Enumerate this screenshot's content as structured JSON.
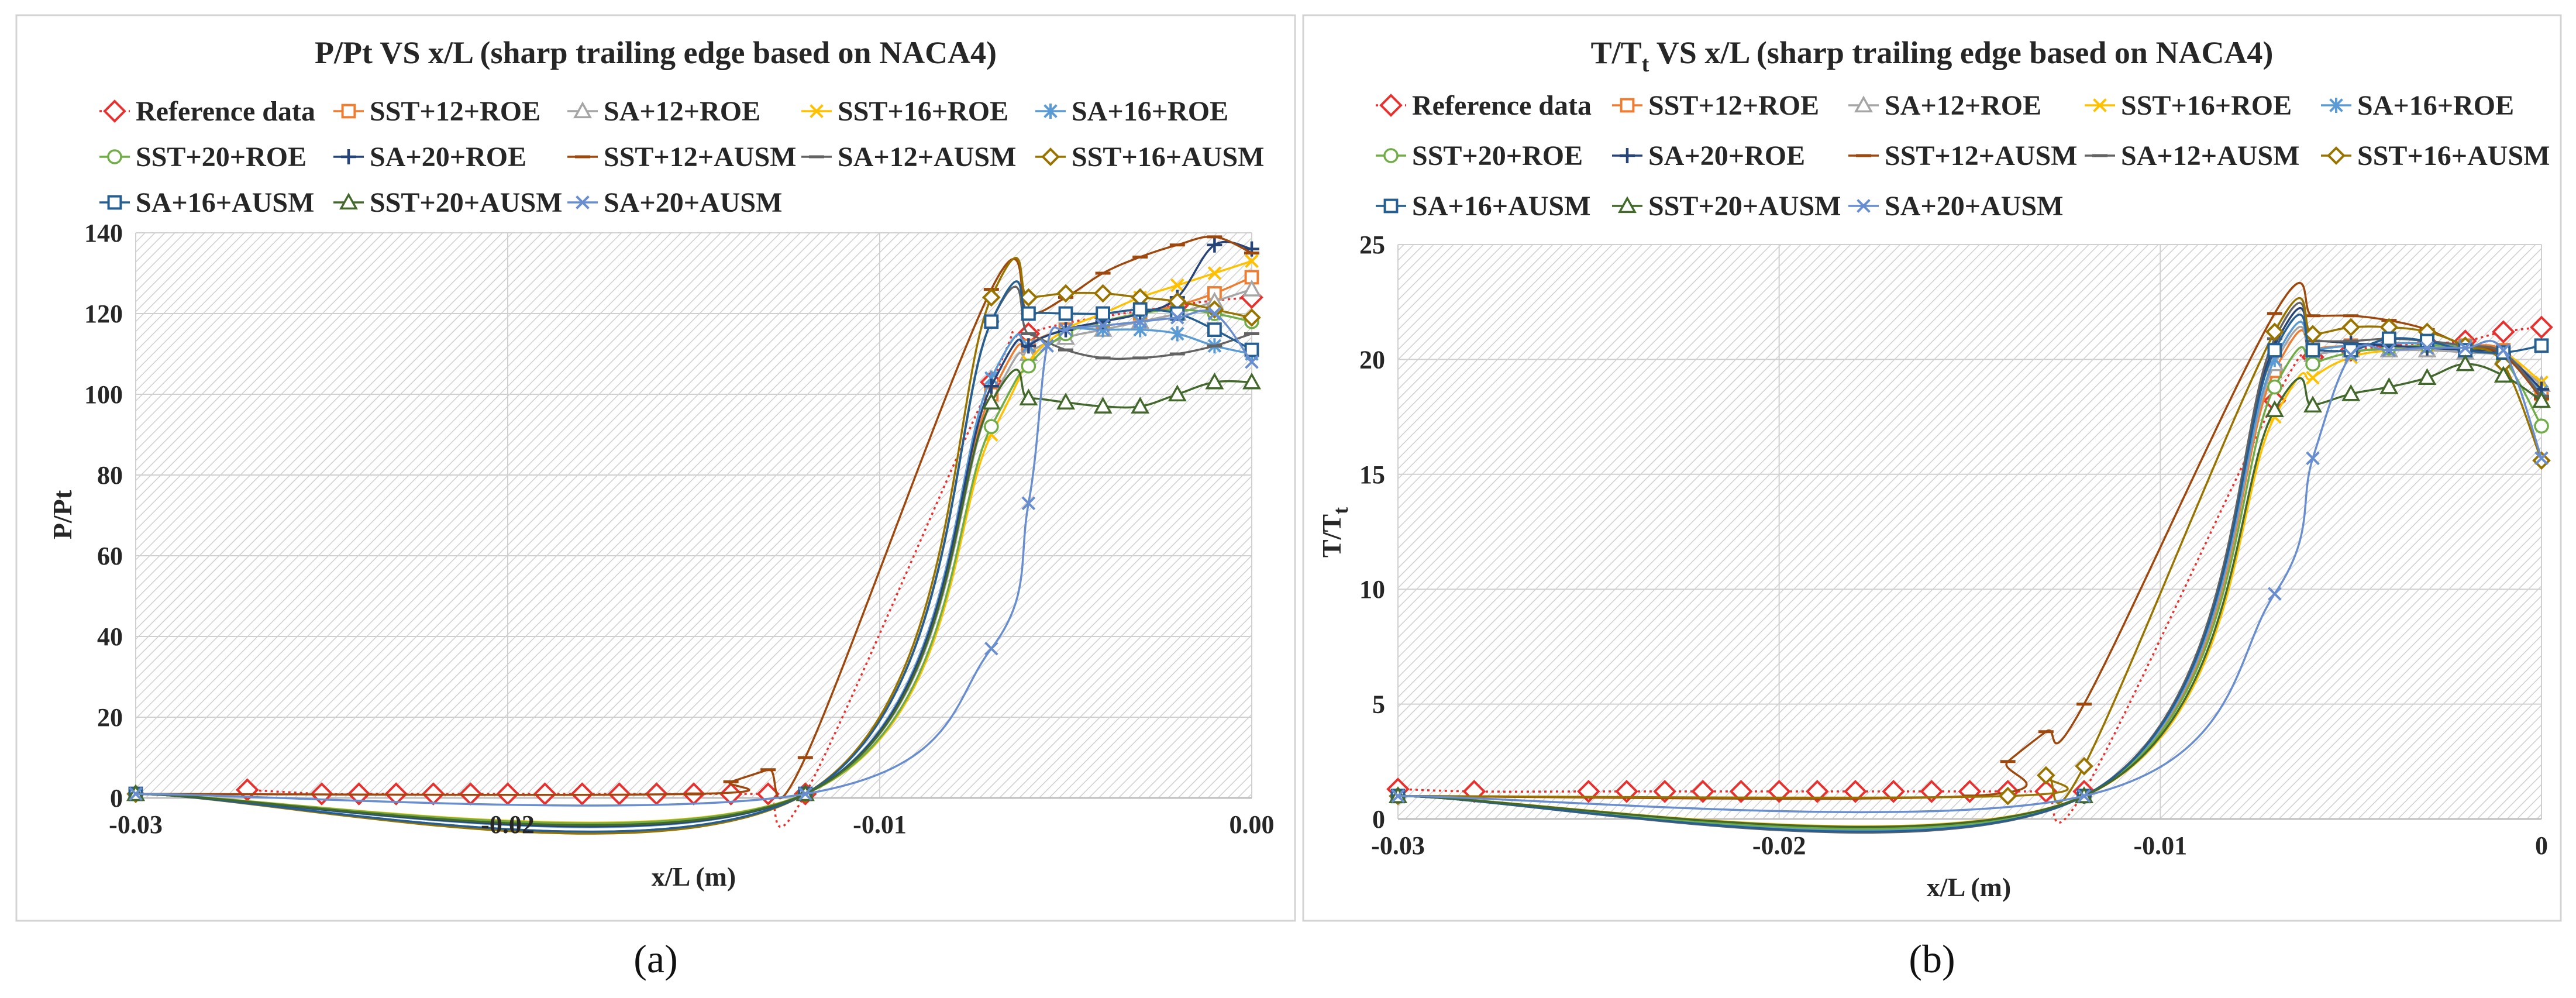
{
  "figure": {
    "captions": [
      "(a)",
      "(b)"
    ]
  },
  "series_style": [
    {
      "name": "Reference data",
      "color": "#e8312e",
      "marker": "diamond",
      "dash": "dotted"
    },
    {
      "name": "SST+12+ROE",
      "color": "#ed7d31",
      "marker": "square"
    },
    {
      "name": "SA+12+ROE",
      "color": "#a5a5a5",
      "marker": "triangle"
    },
    {
      "name": "SST+16+ROE",
      "color": "#ffc000",
      "marker": "x"
    },
    {
      "name": "SA+16+ROE",
      "color": "#5b9bd5",
      "marker": "asterisk"
    },
    {
      "name": "SST+20+ROE",
      "color": "#70ad47",
      "marker": "circle"
    },
    {
      "name": "SA+20+ROE",
      "color": "#264478",
      "marker": "plus"
    },
    {
      "name": "SST+12+AUSM",
      "color": "#9e480e",
      "marker": "dash"
    },
    {
      "name": "SA+12+AUSM",
      "color": "#636363",
      "marker": "dash"
    },
    {
      "name": "SST+16+AUSM",
      "color": "#997300",
      "marker": "diamond"
    },
    {
      "name": "SA+16+AUSM",
      "color": "#255e91",
      "marker": "square"
    },
    {
      "name": "SST+20+AUSM",
      "color": "#43682b",
      "marker": "triangle"
    },
    {
      "name": "SA+20+AUSM",
      "color": "#698ed0",
      "marker": "x"
    }
  ],
  "chart_data": [
    {
      "type": "line",
      "title": "P/Pt VS x/L (sharp trailing edge based on NACA4)",
      "xlabel": "x/L (m)",
      "ylabel": "P/Pt",
      "xlim": [
        -0.03,
        0.0
      ],
      "ylim": [
        0,
        140
      ],
      "xticks": [
        -0.03,
        -0.02,
        -0.01,
        0.0
      ],
      "xtick_labels": [
        "-0.03",
        "-0.02",
        "-0.01",
        "0.00"
      ],
      "yticks": [
        0,
        20,
        40,
        60,
        80,
        100,
        120,
        140
      ],
      "ytick_labels": [
        "0",
        "20",
        "40",
        "60",
        "80",
        "100",
        "120",
        "140"
      ],
      "legend": "top",
      "series": [
        {
          "name": "Reference data",
          "x": [
            -0.027,
            -0.025,
            -0.024,
            -0.023,
            -0.022,
            -0.021,
            -0.02,
            -0.019,
            -0.018,
            -0.017,
            -0.016,
            -0.015,
            -0.014,
            -0.013,
            -0.012,
            -0.007,
            -0.006,
            -0.002,
            0.0
          ],
          "y": [
            2,
            1,
            1,
            1,
            1,
            1,
            1,
            1,
            1,
            1,
            1,
            1,
            1,
            1,
            1,
            103,
            115,
            122,
            124
          ]
        },
        {
          "name": "SST+12+ROE",
          "x": [
            -0.03,
            -0.012,
            -0.007,
            -0.006,
            -0.005,
            -0.004,
            -0.003,
            -0.002,
            -0.001,
            0.0
          ],
          "y": [
            1,
            1,
            100,
            112,
            116,
            118,
            120,
            122,
            125,
            129
          ]
        },
        {
          "name": "SA+12+ROE",
          "x": [
            -0.03,
            -0.012,
            -0.007,
            -0.006,
            -0.005,
            -0.004,
            -0.003,
            -0.002,
            -0.001,
            0.0
          ],
          "y": [
            1,
            1,
            98,
            110,
            114,
            116,
            118,
            120,
            123,
            126
          ]
        },
        {
          "name": "SST+16+ROE",
          "x": [
            -0.03,
            -0.012,
            -0.007,
            -0.006,
            -0.005,
            -0.004,
            -0.003,
            -0.002,
            -0.001,
            0.0
          ],
          "y": [
            1,
            1,
            90,
            108,
            116,
            120,
            124,
            127,
            130,
            133
          ]
        },
        {
          "name": "SA+16+ROE",
          "x": [
            -0.03,
            -0.012,
            -0.007,
            -0.006,
            -0.005,
            -0.004,
            -0.003,
            -0.002,
            -0.001,
            0.0
          ],
          "y": [
            1,
            1,
            104,
            112,
            116,
            116,
            116,
            115,
            112,
            110
          ]
        },
        {
          "name": "SST+20+ROE",
          "x": [
            -0.03,
            -0.012,
            -0.007,
            -0.006,
            -0.005,
            -0.004,
            -0.003,
            -0.002,
            -0.001,
            0.0
          ],
          "y": [
            1,
            1,
            92,
            107,
            115,
            118,
            120,
            121,
            120,
            118
          ]
        },
        {
          "name": "SA+20+ROE",
          "x": [
            -0.03,
            -0.012,
            -0.007,
            -0.006,
            -0.005,
            -0.004,
            -0.003,
            -0.002,
            -0.001,
            0.0
          ],
          "y": [
            1,
            1,
            102,
            112,
            116,
            118,
            120,
            124,
            137,
            136
          ]
        },
        {
          "name": "SST+12+AUSM",
          "x": [
            -0.03,
            -0.015,
            -0.014,
            -0.013,
            -0.012,
            -0.007,
            -0.006,
            -0.005,
            -0.004,
            -0.003,
            -0.002,
            -0.001,
            0.0
          ],
          "y": [
            1,
            1,
            4,
            7,
            10,
            126,
            120,
            124,
            130,
            134,
            137,
            139,
            135
          ]
        },
        {
          "name": "SA+12+AUSM",
          "x": [
            -0.03,
            -0.012,
            -0.007,
            -0.006,
            -0.005,
            -0.004,
            -0.003,
            -0.002,
            -0.001,
            0.0
          ],
          "y": [
            1,
            1,
            118,
            115,
            111,
            109,
            109,
            110,
            112,
            115
          ]
        },
        {
          "name": "SST+16+AUSM",
          "x": [
            -0.03,
            -0.012,
            -0.007,
            -0.006,
            -0.005,
            -0.004,
            -0.003,
            -0.002,
            -0.001,
            0.0
          ],
          "y": [
            1,
            1,
            124,
            124,
            125,
            125,
            124,
            123,
            121,
            119
          ]
        },
        {
          "name": "SA+16+AUSM",
          "x": [
            -0.03,
            -0.012,
            -0.007,
            -0.006,
            -0.005,
            -0.004,
            -0.003,
            -0.002,
            -0.001,
            0.0
          ],
          "y": [
            1,
            1,
            118,
            120,
            120,
            120,
            121,
            120,
            116,
            111
          ]
        },
        {
          "name": "SST+20+AUSM",
          "x": [
            -0.03,
            -0.012,
            -0.007,
            -0.006,
            -0.005,
            -0.004,
            -0.003,
            -0.002,
            -0.001,
            0.0
          ],
          "y": [
            1,
            1,
            98,
            99,
            98,
            97,
            97,
            100,
            103,
            103
          ]
        },
        {
          "name": "SA+20+AUSM",
          "x": [
            -0.03,
            -0.012,
            -0.007,
            -0.006,
            -0.0055,
            -0.005,
            -0.004,
            -0.003,
            -0.002,
            -0.001,
            0.0
          ],
          "y": [
            1,
            1,
            37,
            73,
            112,
            116,
            117,
            118,
            119,
            120,
            108
          ]
        }
      ]
    },
    {
      "type": "line",
      "title_main": "T/T",
      "title_sub": "t",
      "title_rest": " VS x/L (sharp trailing edge based on NACA4)",
      "xlabel": "x/L (m)",
      "ylabel_main": "T/T",
      "ylabel_sub": "t",
      "xlim": [
        -0.03,
        0.0
      ],
      "ylim": [
        0,
        25
      ],
      "xticks": [
        -0.03,
        -0.02,
        -0.01,
        0.0
      ],
      "xtick_labels": [
        "-0.03",
        "-0.02",
        "-0.01",
        "0"
      ],
      "yticks": [
        0,
        5,
        10,
        15,
        20,
        25
      ],
      "ytick_labels": [
        "0",
        "5",
        "10",
        "15",
        "20",
        "25"
      ],
      "legend": "top",
      "series": [
        {
          "name": "Reference data",
          "x": [
            -0.03,
            -0.028,
            -0.025,
            -0.024,
            -0.023,
            -0.022,
            -0.021,
            -0.02,
            -0.019,
            -0.018,
            -0.017,
            -0.016,
            -0.015,
            -0.014,
            -0.013,
            -0.012,
            -0.007,
            -0.006,
            -0.005,
            -0.004,
            -0.003,
            -0.002,
            -0.001,
            0.0
          ],
          "y": [
            1.3,
            1.2,
            1.2,
            1.2,
            1.2,
            1.2,
            1.2,
            1.2,
            1.2,
            1.2,
            1.2,
            1.2,
            1.2,
            1.2,
            1.2,
            1.2,
            18.2,
            20.1,
            20.4,
            20.6,
            20.7,
            20.8,
            21.2,
            21.4
          ]
        },
        {
          "name": "SST+12+ROE",
          "x": [
            -0.03,
            -0.012,
            -0.007,
            -0.006,
            -0.005,
            -0.004,
            -0.003,
            -0.002,
            -0.001,
            0.0
          ],
          "y": [
            1,
            1,
            19.5,
            20.4,
            20.6,
            20.7,
            20.7,
            20.6,
            20.4,
            18.5
          ]
        },
        {
          "name": "SA+12+ROE",
          "x": [
            -0.03,
            -0.012,
            -0.007,
            -0.006,
            -0.005,
            -0.004,
            -0.003,
            -0.002,
            -0.001,
            0.0
          ],
          "y": [
            1,
            1,
            19.8,
            20.2,
            20.4,
            20.4,
            20.4,
            20.3,
            20.1,
            18.9
          ]
        },
        {
          "name": "SST+16+ROE",
          "x": [
            -0.03,
            -0.012,
            -0.007,
            -0.006,
            -0.005,
            -0.004,
            -0.003,
            -0.002,
            -0.001,
            0.0
          ],
          "y": [
            1,
            1,
            17.5,
            19.2,
            20.1,
            20.4,
            20.6,
            20.5,
            20.3,
            19.0
          ]
        },
        {
          "name": "SA+16+ROE",
          "x": [
            -0.03,
            -0.012,
            -0.007,
            -0.006,
            -0.005,
            -0.004,
            -0.003,
            -0.002,
            -0.001,
            0.0
          ],
          "y": [
            1,
            1,
            20.0,
            20.4,
            20.6,
            20.7,
            20.7,
            20.6,
            20.3,
            18.6
          ]
        },
        {
          "name": "SST+20+ROE",
          "x": [
            -0.03,
            -0.012,
            -0.007,
            -0.006,
            -0.005,
            -0.004,
            -0.003,
            -0.002,
            -0.001,
            0.0
          ],
          "y": [
            1,
            1,
            18.8,
            19.8,
            20.3,
            20.5,
            20.6,
            20.5,
            20.0,
            17.1
          ]
        },
        {
          "name": "SA+20+ROE",
          "x": [
            -0.03,
            -0.012,
            -0.007,
            -0.006,
            -0.005,
            -0.004,
            -0.003,
            -0.002,
            -0.001,
            0.0
          ],
          "y": [
            1,
            1,
            20.6,
            20.8,
            20.7,
            20.6,
            20.5,
            20.4,
            20.2,
            18.7
          ]
        },
        {
          "name": "SST+12+AUSM",
          "x": [
            -0.03,
            -0.015,
            -0.014,
            -0.013,
            -0.012,
            -0.007,
            -0.006,
            -0.005,
            -0.004,
            -0.003,
            -0.002,
            -0.001,
            0.0
          ],
          "y": [
            1,
            1,
            2.5,
            3.8,
            5.0,
            22.0,
            21.9,
            21.9,
            21.7,
            21.3,
            20.6,
            20.2,
            18.3
          ]
        },
        {
          "name": "SA+12+AUSM",
          "x": [
            -0.03,
            -0.012,
            -0.007,
            -0.006,
            -0.005,
            -0.004,
            -0.003,
            -0.002,
            -0.001,
            0.0
          ],
          "y": [
            1,
            1,
            20.9,
            20.8,
            20.8,
            20.9,
            20.8,
            20.6,
            20.3,
            18.4
          ]
        },
        {
          "name": "SST+16+AUSM",
          "x": [
            -0.03,
            -0.014,
            -0.013,
            -0.012,
            -0.007,
            -0.006,
            -0.005,
            -0.004,
            -0.003,
            -0.002,
            -0.001,
            0.0
          ],
          "y": [
            1,
            1,
            1.9,
            2.3,
            21.2,
            21.1,
            21.4,
            21.4,
            21.2,
            20.6,
            19.8,
            15.6
          ]
        },
        {
          "name": "SA+16+AUSM",
          "x": [
            -0.03,
            -0.012,
            -0.007,
            -0.006,
            -0.005,
            -0.004,
            -0.003,
            -0.002,
            -0.001,
            0.0
          ],
          "y": [
            1,
            1,
            20.4,
            20.4,
            20.4,
            20.9,
            20.8,
            20.4,
            20.3,
            20.6
          ]
        },
        {
          "name": "SST+20+AUSM",
          "x": [
            -0.03,
            -0.012,
            -0.007,
            -0.006,
            -0.005,
            -0.004,
            -0.003,
            -0.002,
            -0.001,
            0.0
          ],
          "y": [
            1,
            1,
            17.8,
            18.0,
            18.5,
            18.8,
            19.2,
            19.8,
            19.3,
            18.2
          ]
        },
        {
          "name": "SA+20+AUSM",
          "x": [
            -0.03,
            -0.012,
            -0.007,
            -0.006,
            -0.005,
            -0.004,
            -0.003,
            -0.002,
            -0.001,
            0.0
          ],
          "y": [
            1,
            1,
            9.8,
            15.7,
            20.2,
            20.4,
            20.5,
            20.5,
            20.4,
            15.7
          ]
        }
      ]
    }
  ]
}
